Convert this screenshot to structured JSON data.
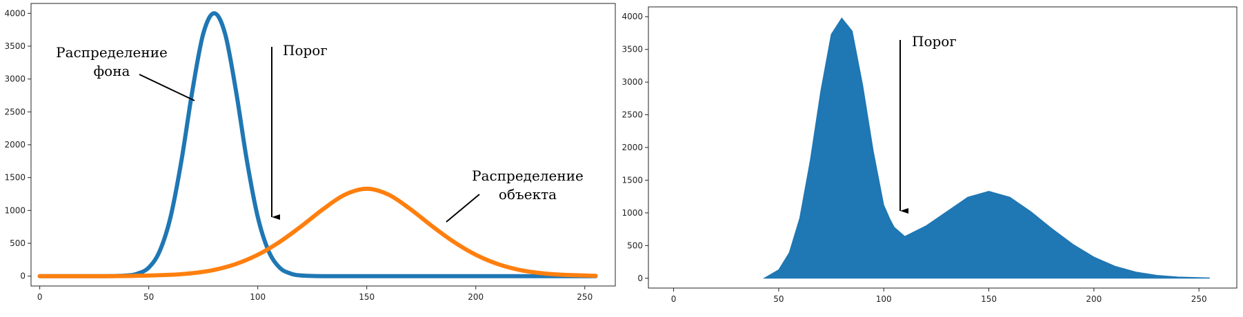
{
  "chart_data": [
    {
      "type": "line",
      "xlim": [
        -4,
        264
      ],
      "ylim": [
        -150,
        4150
      ],
      "xticks": [
        0,
        50,
        100,
        150,
        200,
        250
      ],
      "yticks": [
        0,
        500,
        1000,
        1500,
        2000,
        2500,
        3000,
        3500,
        4000
      ],
      "grid": false,
      "series": [
        {
          "color": "#1f77b4",
          "x": [
            0,
            30,
            40,
            45,
            50,
            55,
            60,
            65,
            70,
            75,
            80,
            85,
            90,
            95,
            100,
            105,
            110,
            115,
            120,
            130,
            160,
            200,
            255
          ],
          "y": [
            0,
            0,
            10,
            40,
            130,
            380,
            900,
            1760,
            2820,
            3690,
            4000,
            3690,
            2820,
            1760,
            900,
            380,
            130,
            40,
            10,
            0,
            0,
            0,
            0
          ]
        },
        {
          "color": "#ff7f0e",
          "x": [
            0,
            20,
            40,
            60,
            70,
            80,
            90,
            100,
            110,
            120,
            130,
            140,
            150,
            160,
            170,
            180,
            190,
            200,
            210,
            220,
            230,
            240,
            255
          ],
          "y": [
            0,
            0,
            2,
            20,
            45,
            95,
            185,
            325,
            520,
            760,
            1020,
            1240,
            1330,
            1240,
            1020,
            760,
            520,
            325,
            185,
            95,
            45,
            20,
            5
          ]
        }
      ],
      "annotations": [
        {
          "id": "background",
          "lines": [
            "Распределение",
            "фона"
          ]
        },
        {
          "id": "threshold",
          "lines": [
            "Порог"
          ]
        },
        {
          "id": "object",
          "lines": [
            "Распределение",
            "объекта"
          ]
        }
      ]
    },
    {
      "type": "area",
      "xlim": [
        -12,
        268
      ],
      "ylim": [
        -150,
        4150
      ],
      "xticks": [
        0,
        50,
        100,
        150,
        200,
        250
      ],
      "yticks": [
        0,
        500,
        1000,
        1500,
        2000,
        2500,
        3000,
        3500,
        4000
      ],
      "grid": false,
      "series": [
        {
          "color": "#1f77b4",
          "x": [
            43,
            50,
            55,
            60,
            65,
            70,
            75,
            80,
            85,
            90,
            95,
            100,
            103,
            105,
            110,
            120,
            130,
            140,
            150,
            160,
            170,
            180,
            190,
            200,
            210,
            220,
            230,
            240,
            255
          ],
          "y": [
            0,
            130,
            390,
            920,
            1800,
            2860,
            3730,
            3980,
            3780,
            2950,
            1950,
            1120,
            900,
            780,
            640,
            800,
            1020,
            1240,
            1330,
            1240,
            1020,
            760,
            520,
            325,
            185,
            95,
            45,
            20,
            5
          ]
        }
      ],
      "annotations": [
        {
          "id": "threshold",
          "lines": [
            "Порог"
          ]
        }
      ]
    }
  ]
}
